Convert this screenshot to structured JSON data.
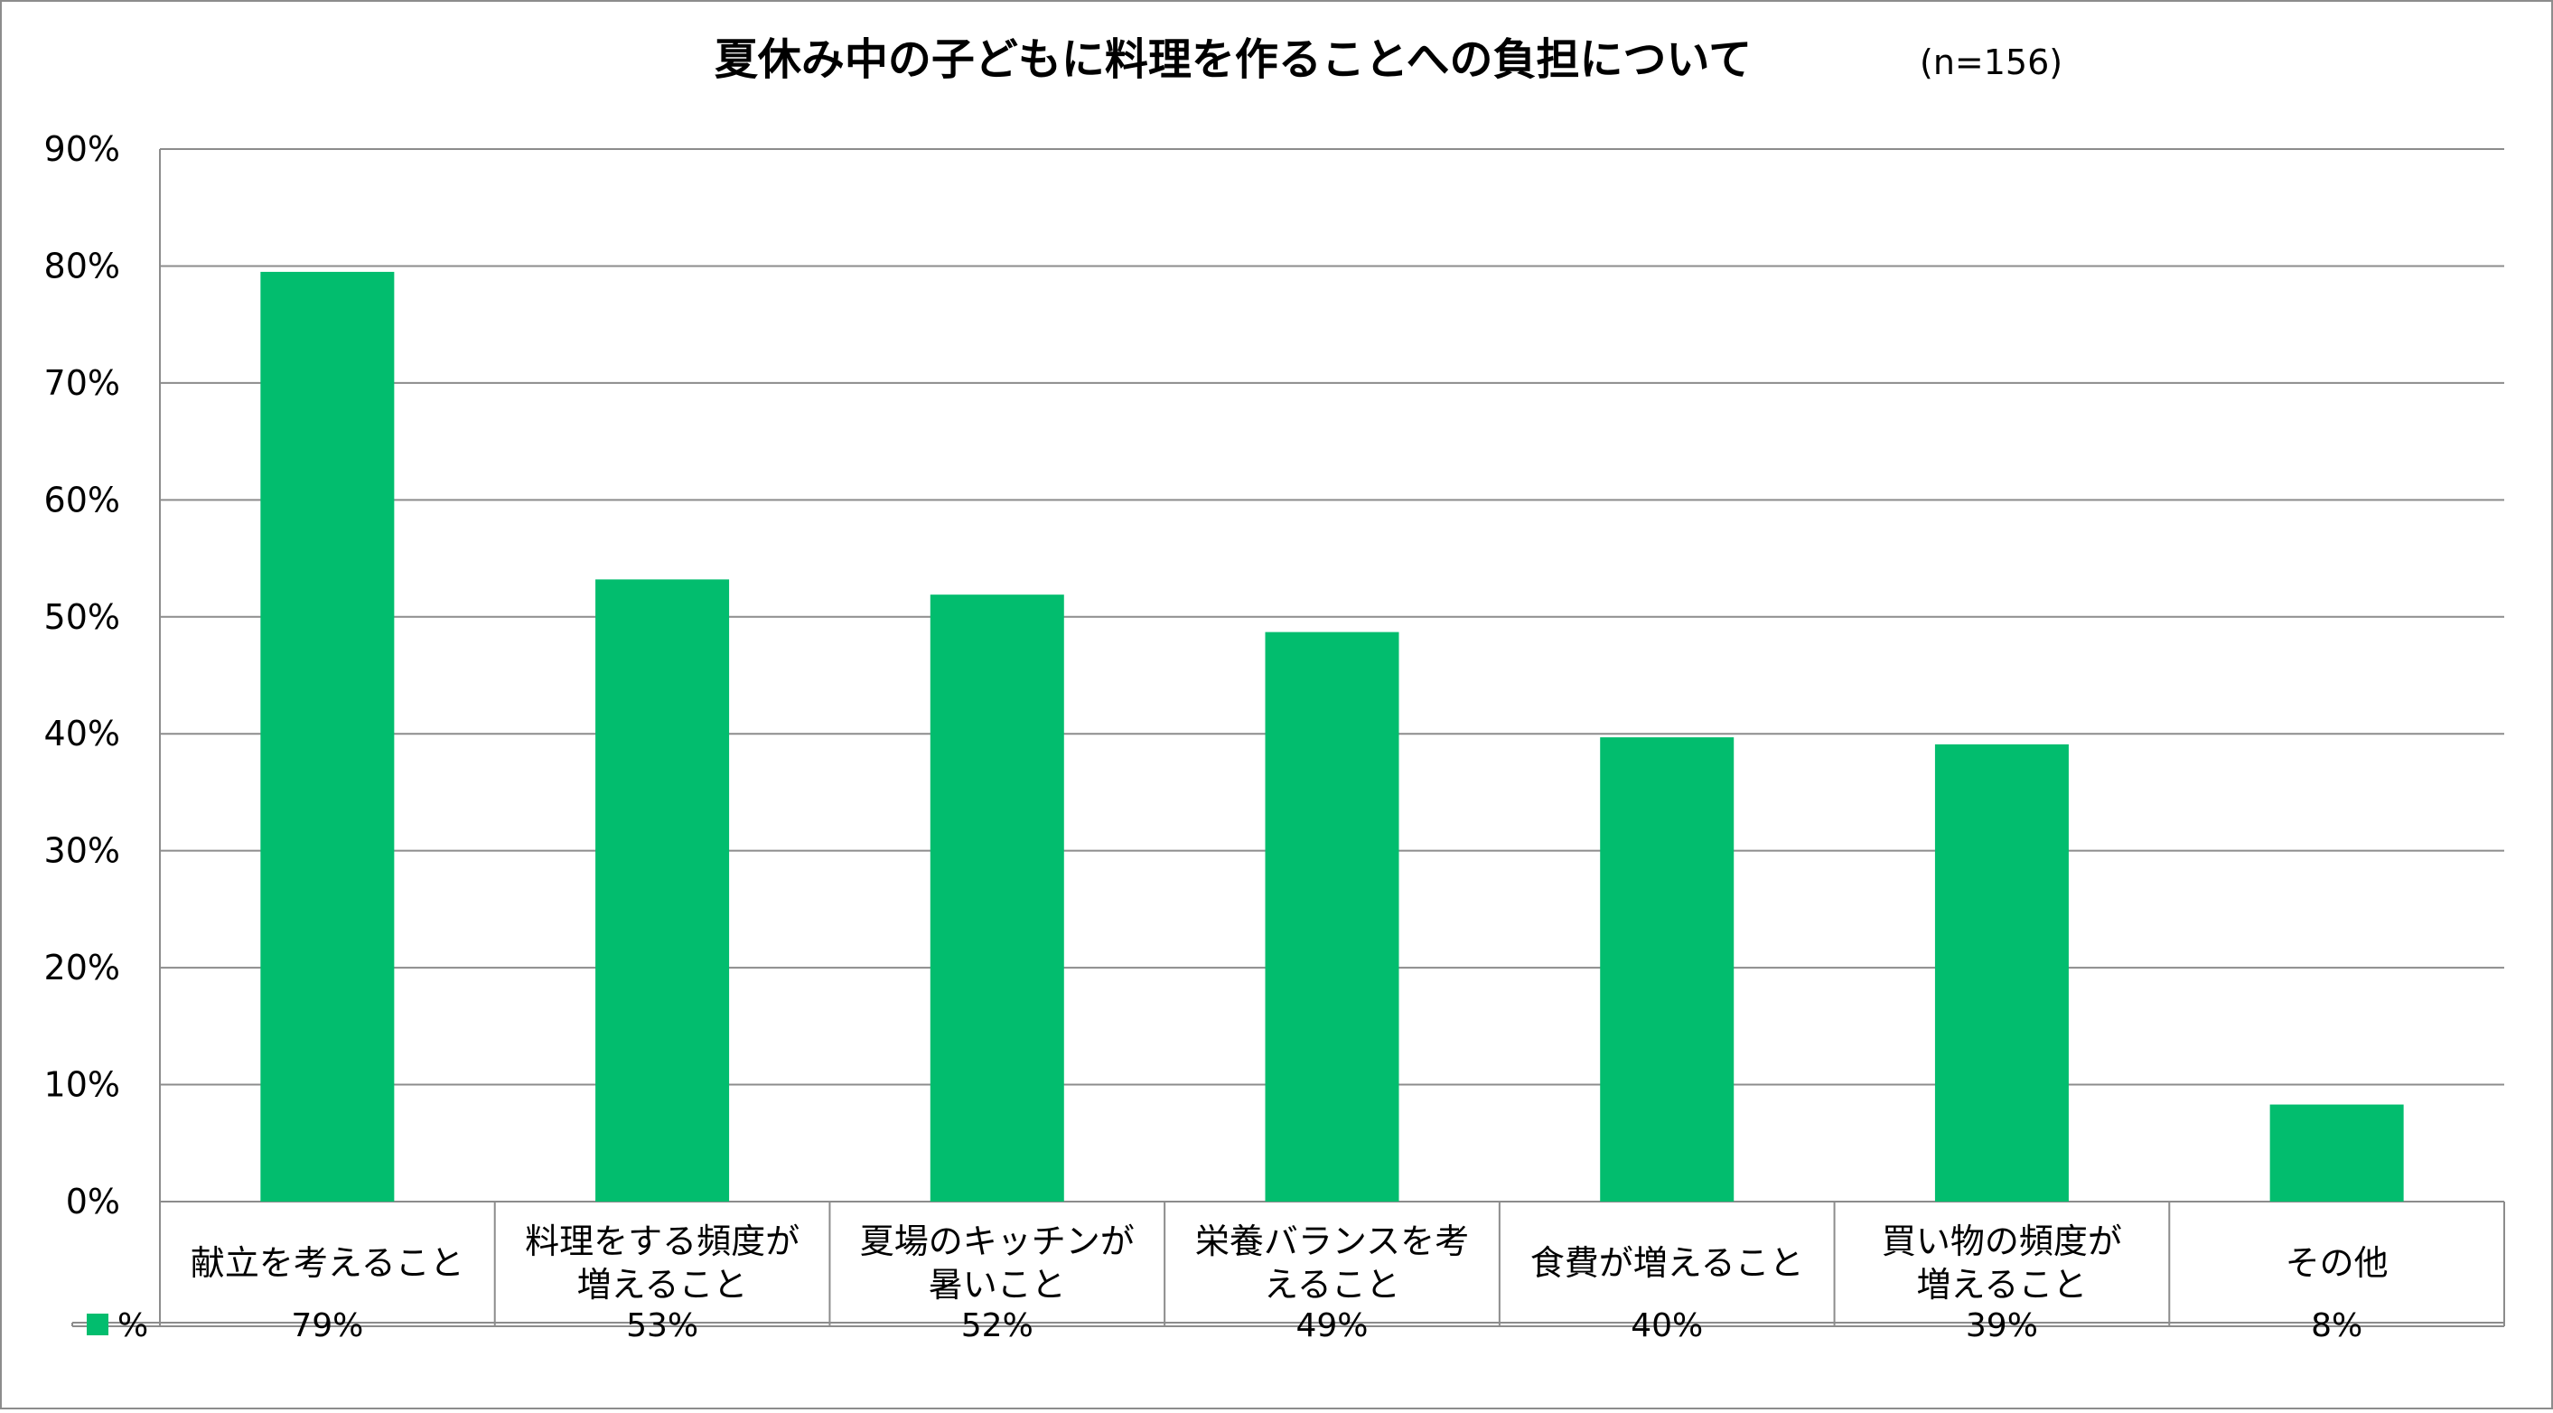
{
  "chart_data": {
    "type": "bar",
    "title": "夏休み中の子どもに料理を作ることへの負担について",
    "subtitle": "(n=156)",
    "categories": [
      [
        "献立を考えること"
      ],
      [
        "料理をする頻度が",
        "増えること"
      ],
      [
        "夏場のキッチンが",
        "暑いこと"
      ],
      [
        "栄養バランスを考",
        "えること"
      ],
      [
        "食費が増えること"
      ],
      [
        "買い物の頻度が",
        "増えること"
      ],
      [
        "その他"
      ]
    ],
    "series": [
      {
        "name": "%",
        "values": [
          79.5,
          53.2,
          51.9,
          48.7,
          39.7,
          39.1,
          8.3
        ]
      }
    ],
    "table_values": [
      "79%",
      "53%",
      "52%",
      "49%",
      "40%",
      "39%",
      "8%"
    ],
    "ylim": [
      0,
      90
    ],
    "yticks": [
      "0%",
      "10%",
      "20%",
      "30%",
      "40%",
      "50%",
      "60%",
      "70%",
      "80%",
      "90%"
    ],
    "grid": true,
    "legend_placement": "data-table",
    "colors": {
      "bar": "#02bd6e",
      "grid": "#8c8c8c",
      "border": "#8c8c8c",
      "text": "#000000"
    }
  }
}
